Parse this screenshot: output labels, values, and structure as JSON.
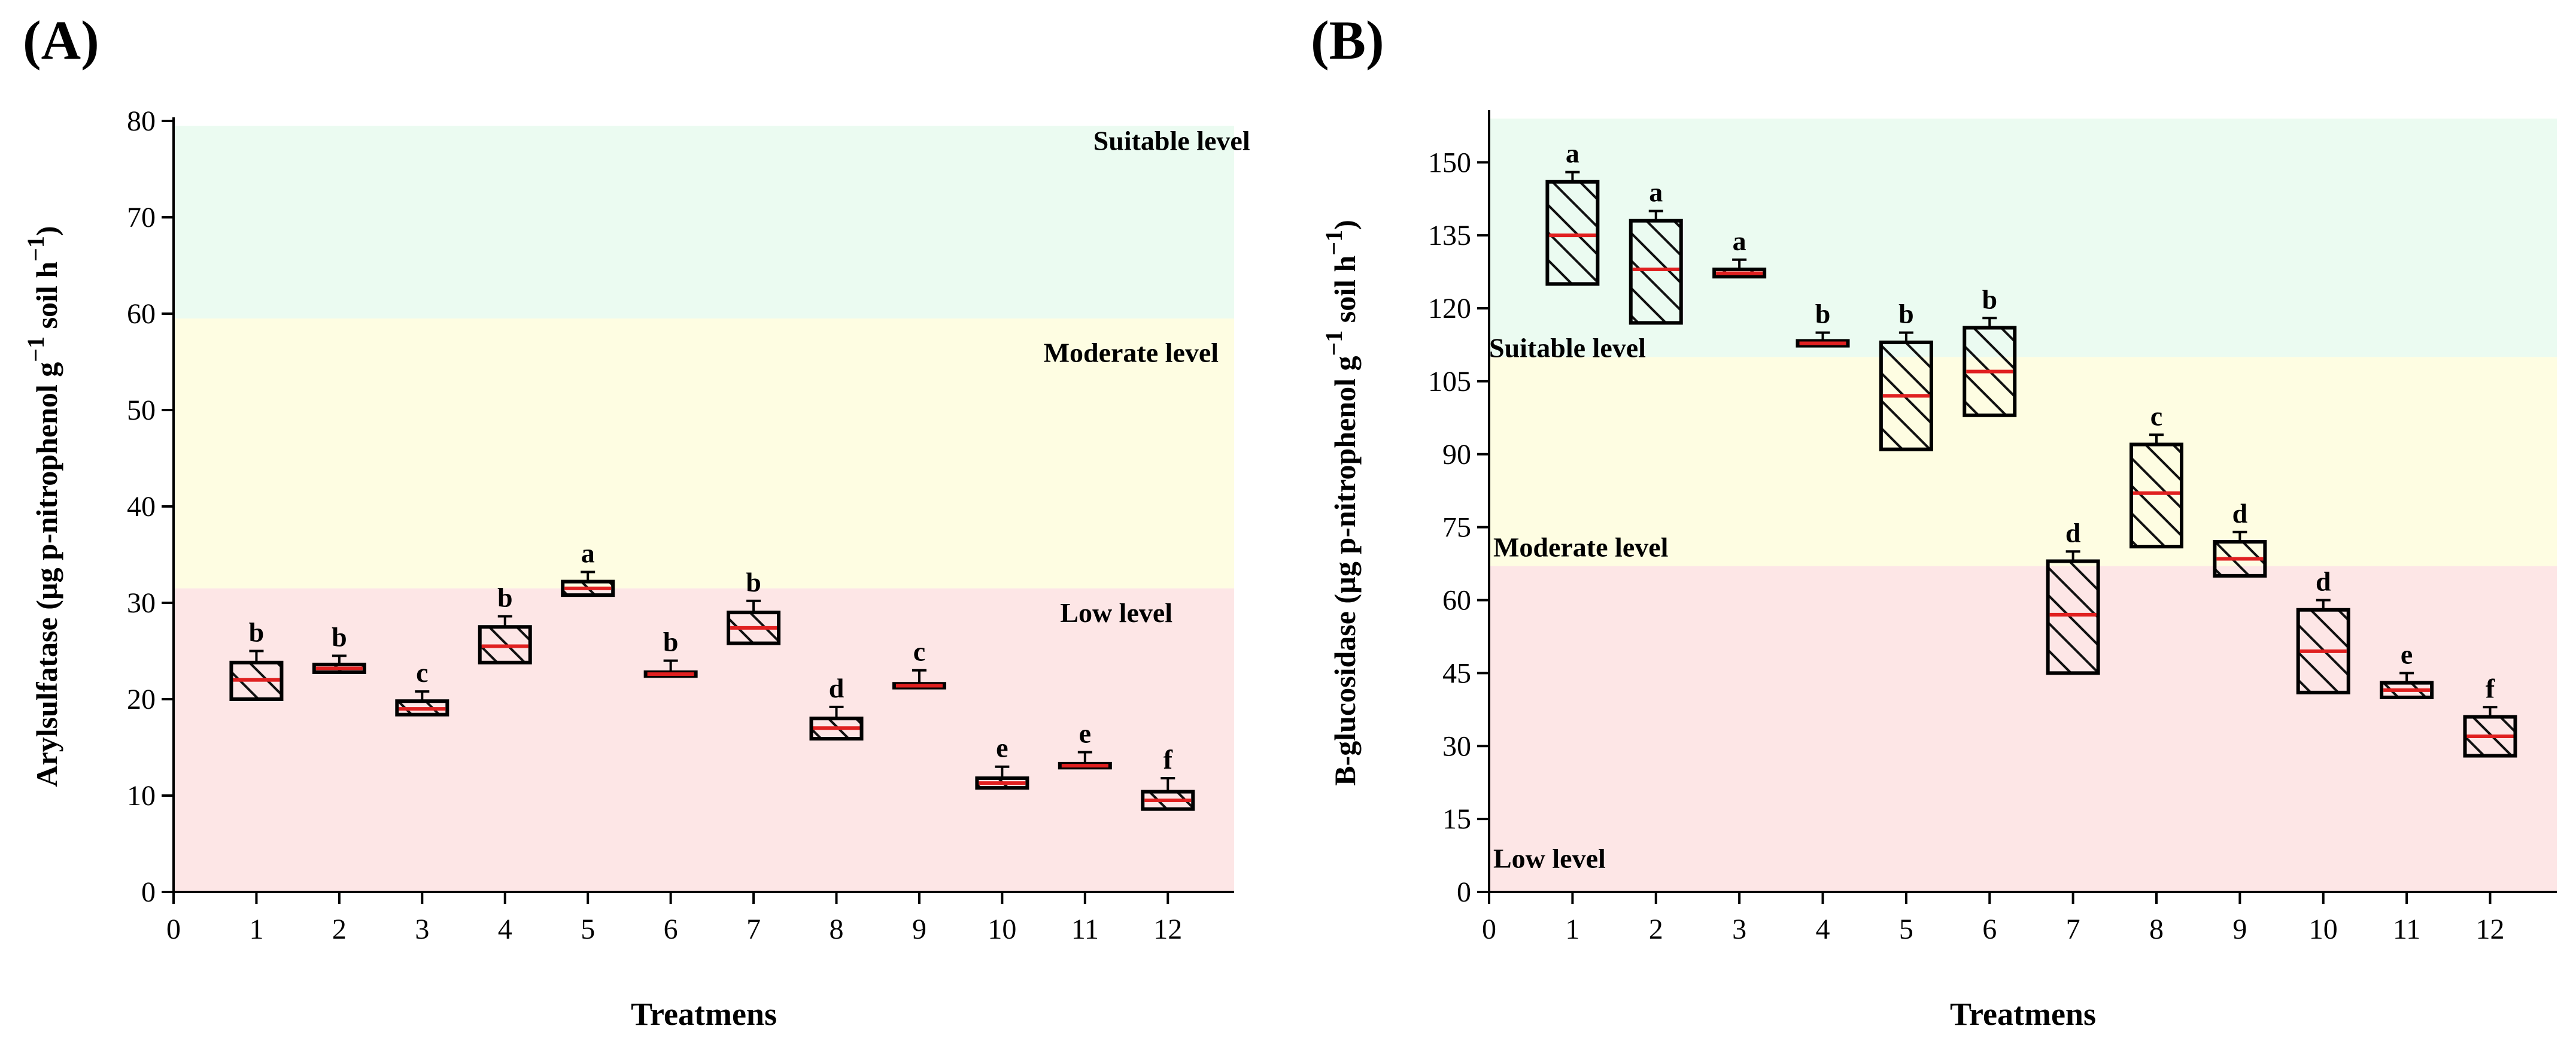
{
  "chart_data": [
    {
      "panel_label": "(A)",
      "type": "box",
      "xlabel": "Treatmens",
      "ylabel_main": "Arylsulfatase (µg p-nitrophenol g",
      "ylabel_sup1": "−1",
      "ylabel_mid": " soil h",
      "ylabel_sup2": "−1",
      "ylabel_end": ")",
      "xlim": [
        0,
        12.8
      ],
      "ylim": [
        0,
        80
      ],
      "xticks": [
        0,
        1,
        2,
        3,
        4,
        5,
        6,
        7,
        8,
        9,
        10,
        11,
        12
      ],
      "yticks": [
        0,
        10,
        20,
        30,
        40,
        50,
        60,
        70,
        80
      ],
      "bands": [
        {
          "from": 0,
          "to": 31.5,
          "color": "#fde6e6",
          "label": "Low level",
          "label_x": 10.7,
          "label_y": 28
        },
        {
          "from": 31.5,
          "to": 59.5,
          "color": "#fefde2",
          "label": "Moderate level",
          "label_x": 10.5,
          "label_y": 55
        },
        {
          "from": 59.5,
          "to": 79.5,
          "color": "#ebfbf1",
          "label": "Suitable level",
          "label_x": 11.1,
          "label_y": 77
        }
      ],
      "series": [
        {
          "x": 1,
          "q1": 20,
          "median": 22,
          "q3": 23.8,
          "whisker": 25,
          "letter": "b"
        },
        {
          "x": 2,
          "q1": 22.8,
          "median": 23.2,
          "q3": 23.6,
          "whisker": 24.5,
          "letter": "b"
        },
        {
          "x": 3,
          "q1": 18.4,
          "median": 19,
          "q3": 19.8,
          "whisker": 20.8,
          "letter": "c"
        },
        {
          "x": 4,
          "q1": 23.8,
          "median": 25.5,
          "q3": 27.5,
          "whisker": 28.6,
          "letter": "b"
        },
        {
          "x": 5,
          "q1": 30.8,
          "median": 31.5,
          "q3": 32.2,
          "whisker": 33.2,
          "letter": "a"
        },
        {
          "x": 6,
          "q1": 22.4,
          "median": 22.6,
          "q3": 22.8,
          "whisker": 24,
          "letter": "b"
        },
        {
          "x": 7,
          "q1": 25.8,
          "median": 27.4,
          "q3": 29,
          "whisker": 30.2,
          "letter": "b"
        },
        {
          "x": 8,
          "q1": 15.9,
          "median": 17,
          "q3": 18,
          "whisker": 19.2,
          "letter": "d"
        },
        {
          "x": 9,
          "q1": 21.2,
          "median": 21.4,
          "q3": 21.6,
          "whisker": 23,
          "letter": "c"
        },
        {
          "x": 10,
          "q1": 10.8,
          "median": 11.3,
          "q3": 11.8,
          "whisker": 13,
          "letter": "e"
        },
        {
          "x": 11,
          "q1": 12.9,
          "median": 13.1,
          "q3": 13.3,
          "whisker": 14.5,
          "letter": "e"
        },
        {
          "x": 12,
          "q1": 8.6,
          "median": 9.5,
          "q3": 10.4,
          "whisker": 11.8,
          "letter": "f"
        }
      ]
    },
    {
      "panel_label": "(B)",
      "type": "box",
      "xlabel": "Treatmens",
      "ylabel_main": "B-glucosidase (µg p-nitrophenol g",
      "ylabel_sup1": "−1",
      "ylabel_mid": " soil h",
      "ylabel_sup2": "−1",
      "ylabel_end": ")",
      "xlim": [
        0,
        12.8
      ],
      "ylim": [
        0,
        160
      ],
      "xticks": [
        0,
        1,
        2,
        3,
        4,
        5,
        6,
        7,
        8,
        9,
        10,
        11,
        12
      ],
      "yticks": [
        0,
        15,
        30,
        45,
        60,
        75,
        90,
        105,
        120,
        135,
        150
      ],
      "bands": [
        {
          "from": 0,
          "to": 67,
          "color": "#fde6e6",
          "label": "Low level",
          "label_x": 0.05,
          "label_y": 5
        },
        {
          "from": 67,
          "to": 110,
          "color": "#fefde2",
          "label": "Moderate level",
          "label_x": 0.05,
          "label_y": 69
        },
        {
          "from": 110,
          "to": 159,
          "color": "#ebfbf1",
          "label": "Suitable level",
          "label_x": 0.0,
          "label_y": 110
        }
      ],
      "series": [
        {
          "x": 1,
          "q1": 125,
          "median": 135,
          "q3": 146,
          "whisker": 148,
          "letter": "a"
        },
        {
          "x": 2,
          "q1": 117,
          "median": 128,
          "q3": 138,
          "whisker": 140,
          "letter": "a"
        },
        {
          "x": 3,
          "q1": 126.5,
          "median": 127.2,
          "q3": 128,
          "whisker": 130,
          "letter": "a"
        },
        {
          "x": 4,
          "q1": 112.3,
          "median": 112.8,
          "q3": 113.3,
          "whisker": 115,
          "letter": "b"
        },
        {
          "x": 5,
          "q1": 91,
          "median": 102,
          "q3": 113,
          "whisker": 115,
          "letter": "b"
        },
        {
          "x": 6,
          "q1": 98,
          "median": 107,
          "q3": 116,
          "whisker": 118,
          "letter": "b"
        },
        {
          "x": 7,
          "q1": 45,
          "median": 57,
          "q3": 68,
          "whisker": 70,
          "letter": "d"
        },
        {
          "x": 8,
          "q1": 71,
          "median": 82,
          "q3": 92,
          "whisker": 94,
          "letter": "c"
        },
        {
          "x": 9,
          "q1": 65,
          "median": 68.5,
          "q3": 72,
          "whisker": 74,
          "letter": "d"
        },
        {
          "x": 10,
          "q1": 41,
          "median": 49.5,
          "q3": 58,
          "whisker": 60,
          "letter": "d"
        },
        {
          "x": 11,
          "q1": 40,
          "median": 41.5,
          "q3": 43,
          "whisker": 45,
          "letter": "e"
        },
        {
          "x": 12,
          "q1": 28,
          "median": 32,
          "q3": 36,
          "whisker": 38,
          "letter": "f"
        }
      ]
    }
  ]
}
